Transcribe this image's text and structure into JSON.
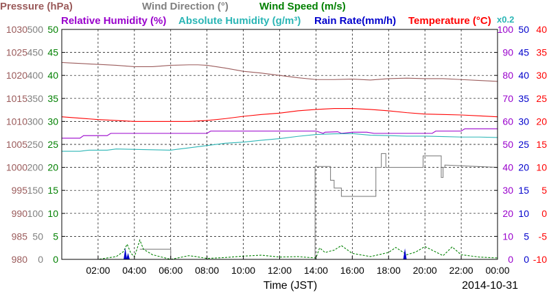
{
  "chart_data": {
    "type": "line",
    "date": "2014-10-31",
    "xlabel": "Time (JST)",
    "x_ticks": [
      "02:00",
      "04:00",
      "06:00",
      "08:00",
      "10:00",
      "12:00",
      "14:00",
      "16:00",
      "18:00",
      "20:00",
      "22:00",
      "00:00"
    ],
    "x_range_hours": [
      0,
      24
    ],
    "legend_row1": [
      {
        "text": "Pressure (hPa)",
        "color": "#9a5a5a"
      },
      {
        "text": "Wind Direction (°)",
        "color": "#808080"
      },
      {
        "text": "Wind Speed (m/s)",
        "color": "#008000"
      }
    ],
    "legend_row2": [
      {
        "text": "Relative Humidity (%)",
        "color": "#9900cc"
      },
      {
        "text": "Absolute Humidity (g/m³)",
        "color": "#2ab5b5"
      },
      {
        "text": "Rain Rate(mm/h)",
        "color": "#0000cc"
      },
      {
        "text": "Temperature (°C)",
        "color": "#ff0000"
      },
      {
        "text": "x0.2",
        "color": "#2ab5b5"
      }
    ],
    "axes": {
      "pressure": {
        "color": "#9a5a5a",
        "ticks": [
          "980",
          "985",
          "990",
          "995",
          "1000",
          "1005",
          "1010",
          "1015",
          "1020",
          "1025",
          "1030"
        ],
        "ylim": [
          980,
          1030
        ]
      },
      "wind_direction": {
        "color": "#808080",
        "ticks": [
          "0",
          "50",
          "100",
          "150",
          "200",
          "250",
          "300",
          "350",
          "400",
          "450",
          "500"
        ],
        "ylim": [
          0,
          500
        ]
      },
      "wind_speed": {
        "color": "#008000",
        "ticks": [
          "0",
          "5",
          "10",
          "15",
          "20",
          "25",
          "30",
          "35",
          "40",
          "45",
          "50"
        ],
        "ylim": [
          0,
          50
        ]
      },
      "relative_humidity": {
        "color": "#9900cc",
        "ticks": [
          "0",
          "10",
          "20",
          "30",
          "40",
          "50",
          "60",
          "70",
          "80",
          "90",
          "100"
        ],
        "ylim": [
          0,
          100
        ]
      },
      "rain_rate": {
        "color": "#0000cc",
        "ticks": [
          "0",
          "5",
          "10",
          "15",
          "20",
          "25",
          "30",
          "35",
          "40",
          "45",
          "50"
        ],
        "ylim": [
          0,
          50
        ]
      },
      "temperature": {
        "color": "#ff0000",
        "ticks": [
          "-10",
          "-5",
          "0",
          "5",
          "10",
          "15",
          "20",
          "25",
          "30",
          "35",
          "40"
        ],
        "ylim": [
          -10,
          40
        ]
      }
    },
    "series": [
      {
        "name": "Pressure (hPa)",
        "color": "#9a5a5a",
        "axis": "pressure",
        "points": [
          [
            0,
            1022.8
          ],
          [
            0.5,
            1022.7
          ],
          [
            1,
            1022.6
          ],
          [
            2,
            1022.4
          ],
          [
            3,
            1022.2
          ],
          [
            4,
            1021.9
          ],
          [
            5,
            1021.9
          ],
          [
            6,
            1022.2
          ],
          [
            7,
            1022.3
          ],
          [
            7.5,
            1022.3
          ],
          [
            8,
            1022.2
          ],
          [
            9,
            1021.6
          ],
          [
            10,
            1020.9
          ],
          [
            11,
            1020.5
          ],
          [
            12,
            1020.0
          ],
          [
            13,
            1019.5
          ],
          [
            14,
            1019.1
          ],
          [
            15,
            1019.1
          ],
          [
            16,
            1019.2
          ],
          [
            17,
            1019.0
          ],
          [
            18,
            1019.3
          ],
          [
            19,
            1019.4
          ],
          [
            20,
            1019.3
          ],
          [
            21,
            1019.3
          ],
          [
            22,
            1019.1
          ],
          [
            23,
            1018.9
          ],
          [
            24,
            1018.7
          ]
        ]
      },
      {
        "name": "Wind Direction (°)",
        "color": "#808080",
        "axis": "wind_direction",
        "points": [
          [
            4.3,
            22
          ],
          [
            6,
            22
          ],
          [
            6,
            0
          ],
          [
            13.95,
            0
          ],
          [
            13.95,
            202
          ],
          [
            14.8,
            202
          ],
          [
            14.8,
            172
          ],
          [
            15,
            172
          ],
          [
            15,
            155
          ],
          [
            15.4,
            155
          ],
          [
            15.4,
            137
          ],
          [
            17.3,
            137
          ],
          [
            17.3,
            200
          ],
          [
            17.6,
            200
          ],
          [
            17.6,
            230
          ],
          [
            17.85,
            230
          ],
          [
            17.85,
            200
          ],
          [
            19.9,
            200
          ],
          [
            19.9,
            225
          ],
          [
            20.9,
            225
          ],
          [
            20.9,
            178
          ],
          [
            21,
            178
          ],
          [
            21,
            200
          ],
          [
            21.1,
            200
          ],
          [
            21.1,
            205
          ],
          [
            24,
            200
          ]
        ]
      },
      {
        "name": "Wind Speed (m/s)",
        "color": "#008000",
        "axis": "wind_speed",
        "points": [
          [
            0,
            0
          ],
          [
            1,
            0
          ],
          [
            2,
            0
          ],
          [
            3,
            0.6
          ],
          [
            3.4,
            1.7
          ],
          [
            3.6,
            3.3
          ],
          [
            3.8,
            1.4
          ],
          [
            4,
            0.5
          ],
          [
            4.3,
            4.2
          ],
          [
            4.5,
            2.2
          ],
          [
            5,
            1.0
          ],
          [
            5.5,
            0.5
          ],
          [
            6,
            0
          ],
          [
            7,
            0.8
          ],
          [
            7.4,
            0.6
          ],
          [
            8,
            0.2
          ],
          [
            9,
            0.4
          ],
          [
            10,
            0.7
          ],
          [
            11,
            0.9
          ],
          [
            12,
            0.5
          ],
          [
            13,
            0.6
          ],
          [
            14,
            0.3
          ],
          [
            14.2,
            2.5
          ],
          [
            14.5,
            1.5
          ],
          [
            15,
            2.0
          ],
          [
            15.4,
            3.0
          ],
          [
            16,
            1.3
          ],
          [
            17,
            0.6
          ],
          [
            18,
            1.5
          ],
          [
            18.4,
            2.6
          ],
          [
            19,
            1.0
          ],
          [
            19.5,
            1.6
          ],
          [
            20,
            2.8
          ],
          [
            20.5,
            1.8
          ],
          [
            21,
            0.8
          ],
          [
            21.5,
            2.7
          ],
          [
            22,
            1.0
          ],
          [
            23,
            0.5
          ],
          [
            24,
            0.3
          ]
        ]
      },
      {
        "name": "Relative Humidity (%)",
        "color": "#9900cc",
        "axis": "relative_humidity",
        "points": [
          [
            0,
            52.7
          ],
          [
            1,
            52.7
          ],
          [
            1.2,
            53.8
          ],
          [
            2.5,
            53.8
          ],
          [
            2.7,
            54.8
          ],
          [
            8,
            54.8
          ],
          [
            8.2,
            55.8
          ],
          [
            14,
            55.8
          ],
          [
            14.4,
            54.8
          ],
          [
            14.5,
            55.3
          ],
          [
            15.2,
            55.5
          ],
          [
            15.4,
            54.8
          ],
          [
            16,
            55.3
          ],
          [
            16.8,
            55.3
          ],
          [
            17.2,
            54.8
          ],
          [
            20.4,
            54.8
          ],
          [
            20.6,
            55.8
          ],
          [
            22,
            55.8
          ],
          [
            22.2,
            56.8
          ],
          [
            24,
            56.8
          ]
        ]
      },
      {
        "name": "Absolute Humidity (g/m³)",
        "color": "#2ab5b5",
        "axis": "absolute_humidity_x0.2",
        "points": [
          [
            0,
            47.0
          ],
          [
            1,
            47.0
          ],
          [
            1.5,
            47.5
          ],
          [
            2.5,
            47.5
          ],
          [
            3,
            48.0
          ],
          [
            6,
            47.5
          ],
          [
            7,
            48.5
          ],
          [
            8,
            49.5
          ],
          [
            9,
            50.5
          ],
          [
            10,
            51.0
          ],
          [
            11,
            51.8
          ],
          [
            12,
            52.5
          ],
          [
            13,
            53.5
          ],
          [
            14,
            54.3
          ],
          [
            15,
            54.6
          ],
          [
            16,
            54.7
          ],
          [
            17,
            54.0
          ],
          [
            18,
            53.8
          ],
          [
            19,
            53.6
          ],
          [
            20,
            53.6
          ],
          [
            21,
            53.4
          ],
          [
            22,
            53.2
          ],
          [
            23,
            53.2
          ],
          [
            24,
            53.0
          ]
        ]
      },
      {
        "name": "Temperature (°C)",
        "color": "#ff0000",
        "axis": "temperature",
        "points": [
          [
            0,
            21.0
          ],
          [
            1,
            20.7
          ],
          [
            2,
            20.4
          ],
          [
            3,
            20.2
          ],
          [
            4,
            20.0
          ],
          [
            5,
            20.0
          ],
          [
            6,
            20.0
          ],
          [
            7,
            20.0
          ],
          [
            8,
            20.2
          ],
          [
            9,
            20.6
          ],
          [
            10,
            21.1
          ],
          [
            11,
            21.5
          ],
          [
            12,
            21.8
          ],
          [
            13,
            22.3
          ],
          [
            14,
            22.6
          ],
          [
            15,
            22.8
          ],
          [
            16,
            22.8
          ],
          [
            17,
            22.6
          ],
          [
            18,
            22.3
          ],
          [
            19,
            21.9
          ],
          [
            20,
            21.6
          ],
          [
            21,
            21.5
          ],
          [
            22,
            21.4
          ],
          [
            23,
            21.2
          ],
          [
            24,
            21.0
          ]
        ]
      },
      {
        "name": "Rain Rate(mm/h)",
        "color": "#0000cc",
        "axis": "rain_rate",
        "events": [
          [
            3.5,
            2.5
          ],
          [
            3.65,
            1.4
          ],
          [
            18.9,
            2.4
          ]
        ]
      }
    ]
  }
}
